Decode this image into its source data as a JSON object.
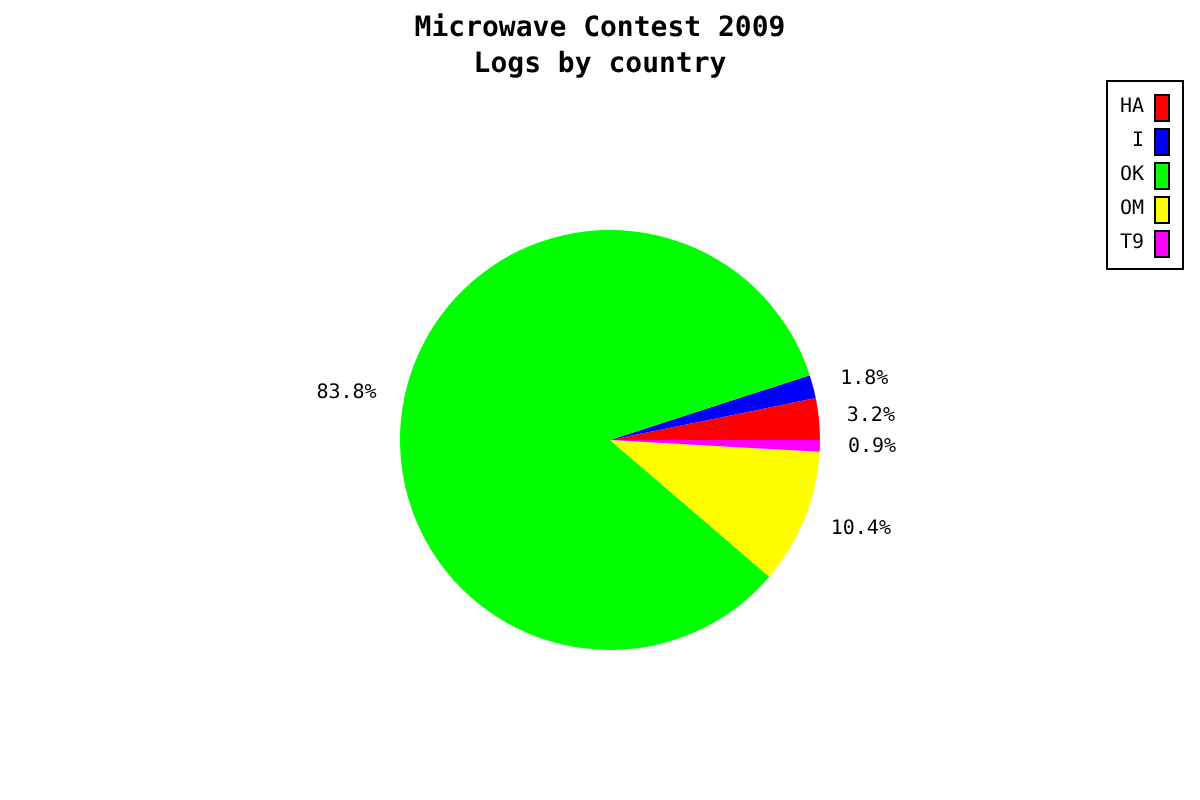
{
  "chart_data": {
    "type": "pie",
    "title": "Microwave Contest 2009",
    "subtitle": "Logs by country",
    "categories": [
      "HA",
      "I",
      "OK",
      "OM",
      "T9"
    ],
    "values": [
      3.2,
      1.8,
      83.8,
      10.4,
      0.9
    ],
    "colors": [
      "#ff0000",
      "#0000ff",
      "#00ff00",
      "#ffff00",
      "#ff00ff"
    ],
    "value_labels": [
      "3.2%",
      "1.8%",
      "83.8%",
      "10.4%",
      "0.9%"
    ],
    "legend": "top right"
  }
}
